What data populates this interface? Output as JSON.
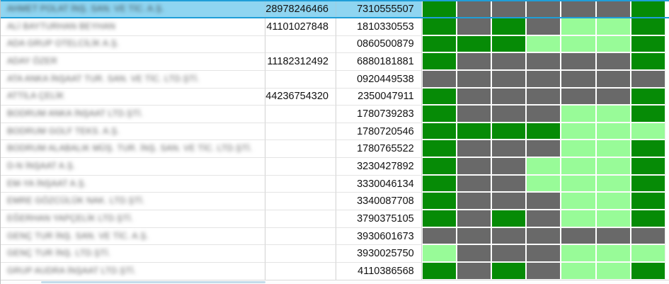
{
  "colors": {
    "green": "#068b06",
    "gray": "#696969",
    "light": "#98fb98",
    "selected_fill": "#8fd5f1",
    "selected_border": "#1f9ed8",
    "bottom_bar": "#c3dcea"
  },
  "table": {
    "status_column_count": 7,
    "rows": [
      {
        "name": "AHMET POLAT İNŞ. SAN. VE TİC. A.Ş.",
        "num1": "28978246466",
        "num2": "7310555507",
        "selected": true,
        "cells": [
          "green",
          "gray",
          "gray",
          "gray",
          "gray",
          "gray",
          "green"
        ]
      },
      {
        "name": "ALİ BAYTURHAN BEYHAN",
        "num1": "41101027848",
        "num2": "1810330553",
        "selected": false,
        "cells": [
          "green",
          "gray",
          "green",
          "gray",
          "light",
          "light",
          "green"
        ]
      },
      {
        "name": "ADA GRUP OTELCİLİK A.Ş.",
        "num1": "",
        "num2": "0860500879",
        "selected": false,
        "cells": [
          "green",
          "green",
          "green",
          "light",
          "light",
          "light",
          "green"
        ]
      },
      {
        "name": "ADAY ÖZER",
        "num1": "11182312492",
        "num2": "6880181881",
        "selected": false,
        "cells": [
          "green",
          "gray",
          "gray",
          "gray",
          "gray",
          "gray",
          "green"
        ]
      },
      {
        "name": "ATA ANKA İNŞAAT TUR. SAN. VE TİC. LTD.ŞTİ.",
        "num1": "",
        "num2": "0920449538",
        "selected": false,
        "cells": [
          "gray",
          "gray",
          "gray",
          "gray",
          "gray",
          "gray",
          "gray"
        ]
      },
      {
        "name": "ATTİLA ÇELİK",
        "num1": "44236754320",
        "num2": "2350047911",
        "selected": false,
        "cells": [
          "green",
          "gray",
          "gray",
          "gray",
          "gray",
          "gray",
          "green"
        ]
      },
      {
        "name": "BODRUM ANKA İNŞAAT LTD.ŞTİ.",
        "num1": "",
        "num2": "1780739283",
        "selected": false,
        "cells": [
          "green",
          "gray",
          "gray",
          "gray",
          "light",
          "light",
          "green"
        ]
      },
      {
        "name": "BODRUM GOLF TEKS. A.Ş.",
        "num1": "",
        "num2": "1780720546",
        "selected": false,
        "cells": [
          "green",
          "green",
          "green",
          "green",
          "light",
          "light",
          "light"
        ]
      },
      {
        "name": "BODRUM ALABALIK MÜŞ. TUR. İNŞ. SAN. VE TİC. LTD.ŞTİ.",
        "num1": "",
        "num2": "1780765522",
        "selected": false,
        "cells": [
          "green",
          "gray",
          "gray",
          "gray",
          "light",
          "light",
          "green"
        ]
      },
      {
        "name": "D-N İNŞAAT A.Ş.",
        "num1": "",
        "num2": "3230427892",
        "selected": false,
        "cells": [
          "green",
          "gray",
          "gray",
          "light",
          "light",
          "light",
          "green"
        ]
      },
      {
        "name": "EM-YA İNŞAAT A.Ş.",
        "num1": "",
        "num2": "3330046134",
        "selected": false,
        "cells": [
          "green",
          "gray",
          "gray",
          "light",
          "light",
          "light",
          "green"
        ]
      },
      {
        "name": "EMRE GÖZCÜLÜK NAK. LTD.ŞTİ.",
        "num1": "",
        "num2": "3340087708",
        "selected": false,
        "cells": [
          "green",
          "gray",
          "gray",
          "gray",
          "light",
          "light",
          "green"
        ]
      },
      {
        "name": "EĞERHAN YAPÇELİK LTD.ŞTİ.",
        "num1": "",
        "num2": "3790375105",
        "selected": false,
        "cells": [
          "green",
          "gray",
          "green",
          "gray",
          "light",
          "light",
          "green"
        ]
      },
      {
        "name": "GENÇ TUR İNŞ. SAN. VE TİC. A.Ş.",
        "num1": "",
        "num2": "3930601673",
        "selected": false,
        "cells": [
          "gray",
          "gray",
          "gray",
          "gray",
          "gray",
          "gray",
          "gray"
        ]
      },
      {
        "name": "GENÇ TUR İNŞ. LTD.ŞTİ.",
        "num1": "",
        "num2": "3930025750",
        "selected": false,
        "cells": [
          "light",
          "gray",
          "gray",
          "gray",
          "light",
          "light",
          "light"
        ]
      },
      {
        "name": "GRUP AUDRA İNŞAAT LTD.ŞTİ.",
        "num1": "",
        "num2": "4110386568",
        "selected": false,
        "cells": [
          "green",
          "gray",
          "green",
          "gray",
          "light",
          "light",
          "green"
        ]
      }
    ]
  }
}
